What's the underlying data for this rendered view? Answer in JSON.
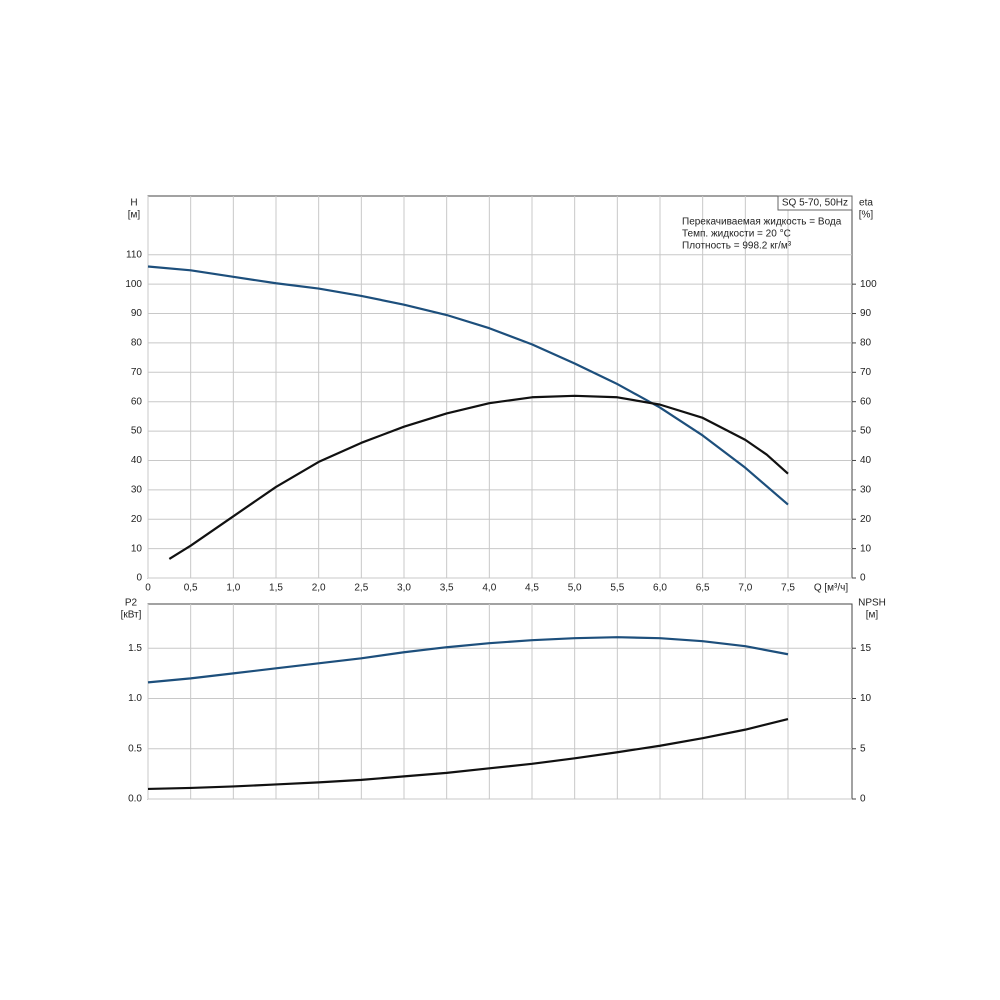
{
  "chart_data": [
    {
      "type": "line",
      "x_label": "Q [м³/ч]",
      "y_label": [
        "H",
        "[м]"
      ],
      "y2_label": [
        "eta",
        "[%]"
      ],
      "annotations": [
        "SQ 5-70, 50Hz",
        "Перекачиваемая жидкость = Вода",
        "Темп. жидкости = 20 °C",
        "Плотность = 998.2 кг/м³"
      ],
      "xlim": [
        0,
        8.25
      ],
      "xticks": [
        0,
        {
          "value": 0.5,
          "label": "0,5"
        },
        {
          "value": 1,
          "label": "1,0"
        },
        {
          "value": 1.5,
          "label": "1,5"
        },
        {
          "value": 2,
          "label": "2,0"
        },
        {
          "value": 2.5,
          "label": "2,5"
        },
        {
          "value": 3,
          "label": "3,0"
        },
        {
          "value": 3.5,
          "label": "3,5"
        },
        {
          "value": 4,
          "label": "4,0"
        },
        {
          "value": 4.5,
          "label": "4,5"
        },
        {
          "value": 5,
          "label": "5,0"
        },
        {
          "value": 5.5,
          "label": "5,5"
        },
        {
          "value": 6,
          "label": "6,0"
        },
        {
          "value": 6.5,
          "label": "6,5"
        },
        {
          "value": 7,
          "label": "7,0"
        },
        {
          "value": 7.5,
          "label": "7,5"
        }
      ],
      "ylim": [
        0,
        130
      ],
      "yticks": [
        0,
        10,
        20,
        30,
        40,
        50,
        60,
        70,
        80,
        90,
        100,
        110
      ],
      "y2lim": [
        0,
        130
      ],
      "y2ticks": [
        0,
        10,
        20,
        30,
        40,
        50,
        60,
        70,
        80,
        90,
        100
      ],
      "grid": true,
      "series": [
        {
          "color": "#1d4f7c",
          "x": [
            0,
            0.5,
            1,
            1.5,
            2,
            2.5,
            3,
            3.5,
            4,
            4.5,
            5,
            5.5,
            6,
            6.5,
            7,
            7.5
          ],
          "values": [
            106,
            104.7,
            102.5,
            100.3,
            98.5,
            96,
            93,
            89.5,
            85,
            79.5,
            73,
            66,
            58,
            48.5,
            37.5,
            25
          ]
        },
        {
          "color": "#111111",
          "axis": "y2",
          "x": [
            0.25,
            0.5,
            1,
            1.5,
            2,
            2.5,
            3,
            3.5,
            4,
            4.5,
            5,
            5.5,
            6,
            6.5,
            7,
            7.25,
            7.5
          ],
          "values": [
            6.5,
            11,
            21,
            31,
            39.5,
            46,
            51.5,
            56,
            59.5,
            61.5,
            62,
            61.5,
            59,
            54.5,
            47,
            42,
            35.5
          ]
        }
      ]
    },
    {
      "type": "line",
      "y_label": [
        "P2",
        "[кВт]"
      ],
      "y2_label": [
        "NPSH",
        "[м]"
      ],
      "xlim": [
        0,
        8.25
      ],
      "ylim": [
        0,
        1.94
      ],
      "yticks": [
        {
          "value": 0,
          "label": "0.0"
        },
        0.5,
        {
          "value": 1,
          "label": "1.0"
        },
        1.5
      ],
      "y2lim": [
        0,
        19.4
      ],
      "y2ticks": [
        0,
        5,
        10,
        15
      ],
      "grid": true,
      "series": [
        {
          "color": "#1d4f7c",
          "x": [
            0,
            0.5,
            1,
            1.5,
            2,
            2.5,
            3,
            3.5,
            4,
            4.5,
            5,
            5.5,
            6,
            6.5,
            7,
            7.5
          ],
          "values": [
            1.16,
            1.2,
            1.25,
            1.3,
            1.35,
            1.4,
            1.46,
            1.51,
            1.55,
            1.58,
            1.6,
            1.61,
            1.6,
            1.57,
            1.52,
            1.44
          ]
        },
        {
          "color": "#111111",
          "axis": "y2",
          "x": [
            0,
            0.5,
            1,
            1.5,
            2,
            2.5,
            3,
            3.5,
            4,
            4.5,
            5,
            5.5,
            6,
            6.5,
            7,
            7.5
          ],
          "values": [
            1,
            1.1,
            1.25,
            1.45,
            1.65,
            1.9,
            2.25,
            2.6,
            3.05,
            3.5,
            4.05,
            4.65,
            5.3,
            6.05,
            6.9,
            7.95
          ]
        }
      ]
    }
  ]
}
